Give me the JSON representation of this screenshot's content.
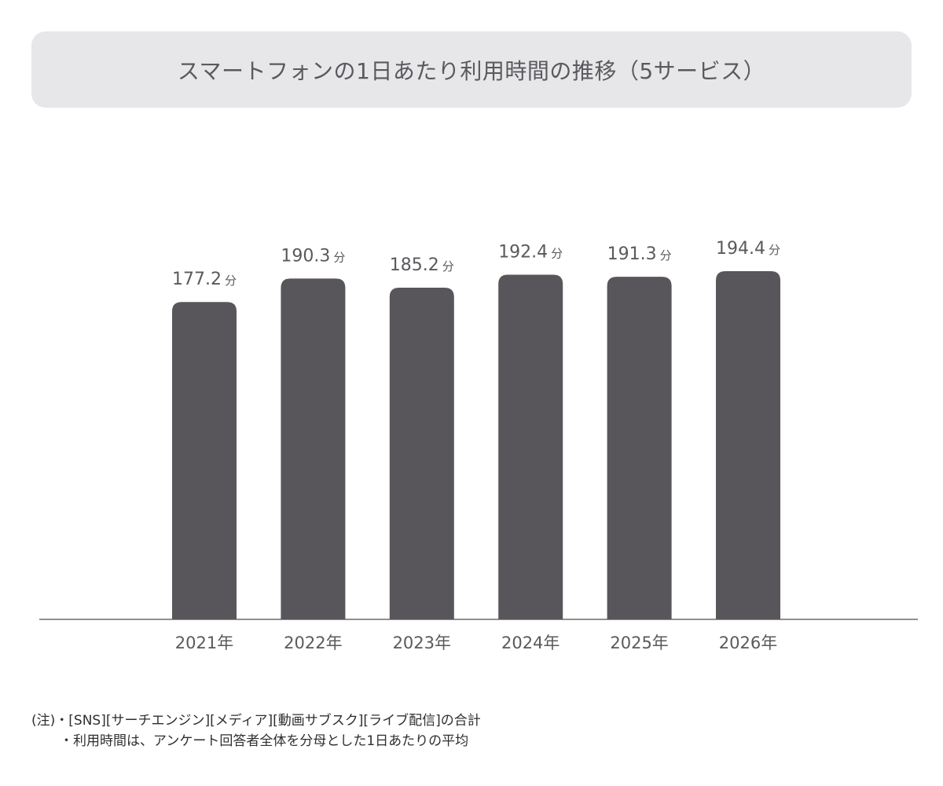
{
  "title": "スマートフォンの1日あたり利用時間の推移（5サービス）",
  "colors": {
    "bar": "#58565a",
    "axis": "#6b6a6e",
    "label": "#5a595d",
    "title_bg": "#e7e6e9"
  },
  "chart_data": {
    "type": "bar",
    "title": "スマートフォンの1日あたり利用時間の推移（5サービス）",
    "categories": [
      "2021年",
      "2022年",
      "2023年",
      "2024年",
      "2025年",
      "2026年"
    ],
    "values": [
      177.2,
      190.3,
      185.2,
      192.4,
      191.3,
      194.4
    ],
    "value_labels": [
      "177.2",
      "190.3",
      "185.2",
      "192.4",
      "191.3",
      "194.4"
    ],
    "unit": "分",
    "xlabel": "",
    "ylabel": "",
    "ylim": [
      0,
      194.4
    ],
    "grid": false,
    "legend": "none"
  },
  "notes": {
    "line1": "(注)・[SNS][サーチエンジン][メディア][動画サブスク][ライブ配信]の合計",
    "line2": "・利用時間は、アンケート回答者全体を分母とした1日あたりの平均"
  }
}
